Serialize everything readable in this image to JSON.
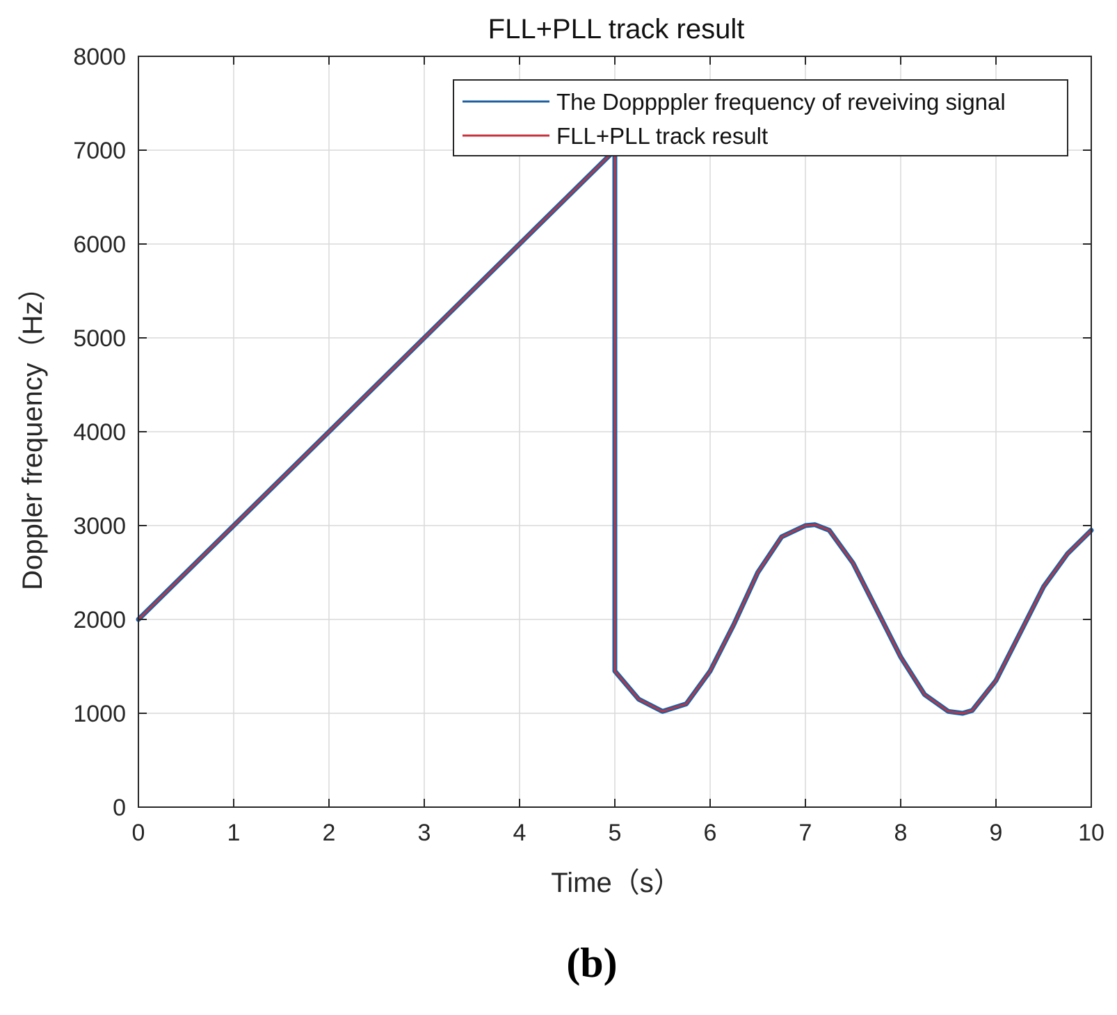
{
  "panel_label": "(b)",
  "colors": {
    "series_blue": "#1f5fa0",
    "series_red": "#c8323c",
    "grid": "#d9d9d9",
    "axis": "#262626"
  },
  "chart_data": {
    "type": "line",
    "title": "FLL+PLL track result",
    "xlabel": "Time（s）",
    "ylabel": "Doppler frequency（Hz）",
    "xlim": [
      0,
      10
    ],
    "ylim": [
      0,
      8000
    ],
    "xticks": [
      "0",
      "1",
      "2",
      "3",
      "4",
      "5",
      "6",
      "7",
      "8",
      "9",
      "10"
    ],
    "yticks": [
      "0",
      "1000",
      "2000",
      "3000",
      "4000",
      "5000",
      "6000",
      "7000",
      "8000"
    ],
    "grid": true,
    "legend_position": "top-right",
    "series": [
      {
        "name": "The Doppppler frequency of reveiving signal",
        "color": "#1f5fa0",
        "x": [
          0,
          0.5,
          1,
          1.5,
          2,
          2.5,
          3,
          3.5,
          4,
          4.5,
          5,
          5.0001,
          5.25,
          5.5,
          5.75,
          6,
          6.25,
          6.5,
          6.75,
          7,
          7.1,
          7.25,
          7.5,
          7.75,
          8,
          8.25,
          8.5,
          8.65,
          8.75,
          9,
          9.25,
          9.5,
          9.75,
          10
        ],
        "y": [
          2000,
          2500,
          3000,
          3500,
          4000,
          4500,
          5000,
          5500,
          6000,
          6500,
          7000,
          1450,
          1150,
          1020,
          1100,
          1450,
          1950,
          2500,
          2880,
          3000,
          3010,
          2950,
          2600,
          2100,
          1600,
          1200,
          1020,
          1000,
          1030,
          1350,
          1850,
          2350,
          2700,
          2950
        ]
      },
      {
        "name": "FLL+PLL track result",
        "color": "#c8323c",
        "x": [
          0,
          0.5,
          1,
          1.5,
          2,
          2.5,
          3,
          3.5,
          4,
          4.5,
          5,
          5.0001,
          5.25,
          5.5,
          5.75,
          6,
          6.25,
          6.5,
          6.75,
          7,
          7.1,
          7.25,
          7.5,
          7.75,
          8,
          8.25,
          8.5,
          8.65,
          8.75,
          9,
          9.25,
          9.5,
          9.75,
          10
        ],
        "y": [
          2000,
          2500,
          3000,
          3500,
          4000,
          4500,
          5000,
          5500,
          6000,
          6500,
          7000,
          1450,
          1150,
          1020,
          1100,
          1450,
          1950,
          2500,
          2880,
          3000,
          3010,
          2950,
          2600,
          2100,
          1600,
          1200,
          1020,
          1000,
          1030,
          1350,
          1850,
          2350,
          2700,
          2950
        ]
      }
    ]
  }
}
